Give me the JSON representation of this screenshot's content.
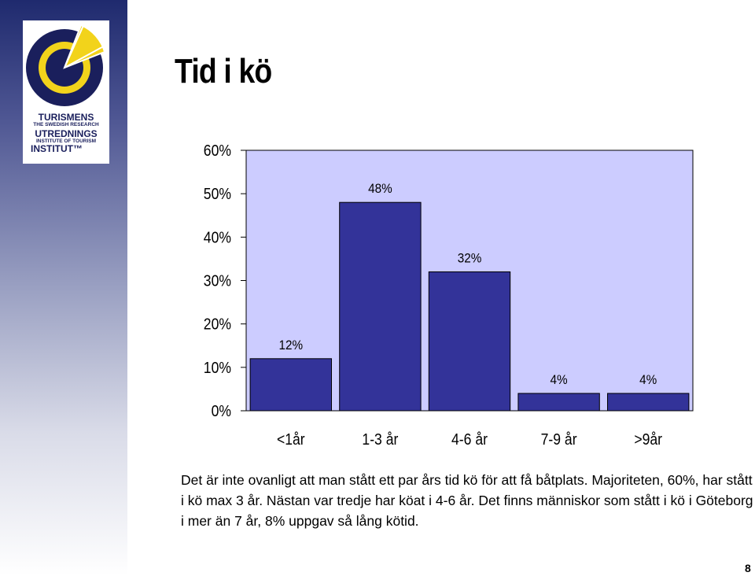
{
  "logo": {
    "lines": [
      "TURISMENS",
      "THE SWEDISH RESEARCH",
      "UTREDNINGS",
      "INSTITUTE OF TOURISM",
      "INSTITUT™"
    ]
  },
  "page": {
    "title": "Tid i kö",
    "caption": "Det är inte ovanligt att man stått ett par års tid kö för att få båtplats. Majoriteten, 60%, har stått i kö max 3 år. Nästan var tredje har köat i 4-6 år. Det finns människor som stått i kö i Göteborg i mer än 7 år, 8% uppgav så lång kötid.",
    "page_number": "8"
  },
  "colors": {
    "plot_background": "#CCCCFF",
    "bar_fill": "#333399",
    "logo_blue": "#1a1f5c",
    "logo_yellow": "#f2d31b"
  },
  "chart_data": {
    "type": "bar",
    "title": "",
    "xlabel": "",
    "ylabel": "",
    "categories": [
      "<1år",
      "1-3 år",
      "4-6 år",
      "7-9 år",
      ">9år"
    ],
    "values": [
      12,
      48,
      32,
      4,
      4
    ],
    "data_labels": [
      "12%",
      "48%",
      "32%",
      "4%",
      "4%"
    ],
    "yticks": [
      0,
      10,
      20,
      30,
      40,
      50,
      60
    ],
    "ytick_labels": [
      "0%",
      "10%",
      "20%",
      "30%",
      "40%",
      "50%",
      "60%"
    ],
    "ylim": [
      0,
      60
    ],
    "grid": false,
    "legend": "none"
  }
}
